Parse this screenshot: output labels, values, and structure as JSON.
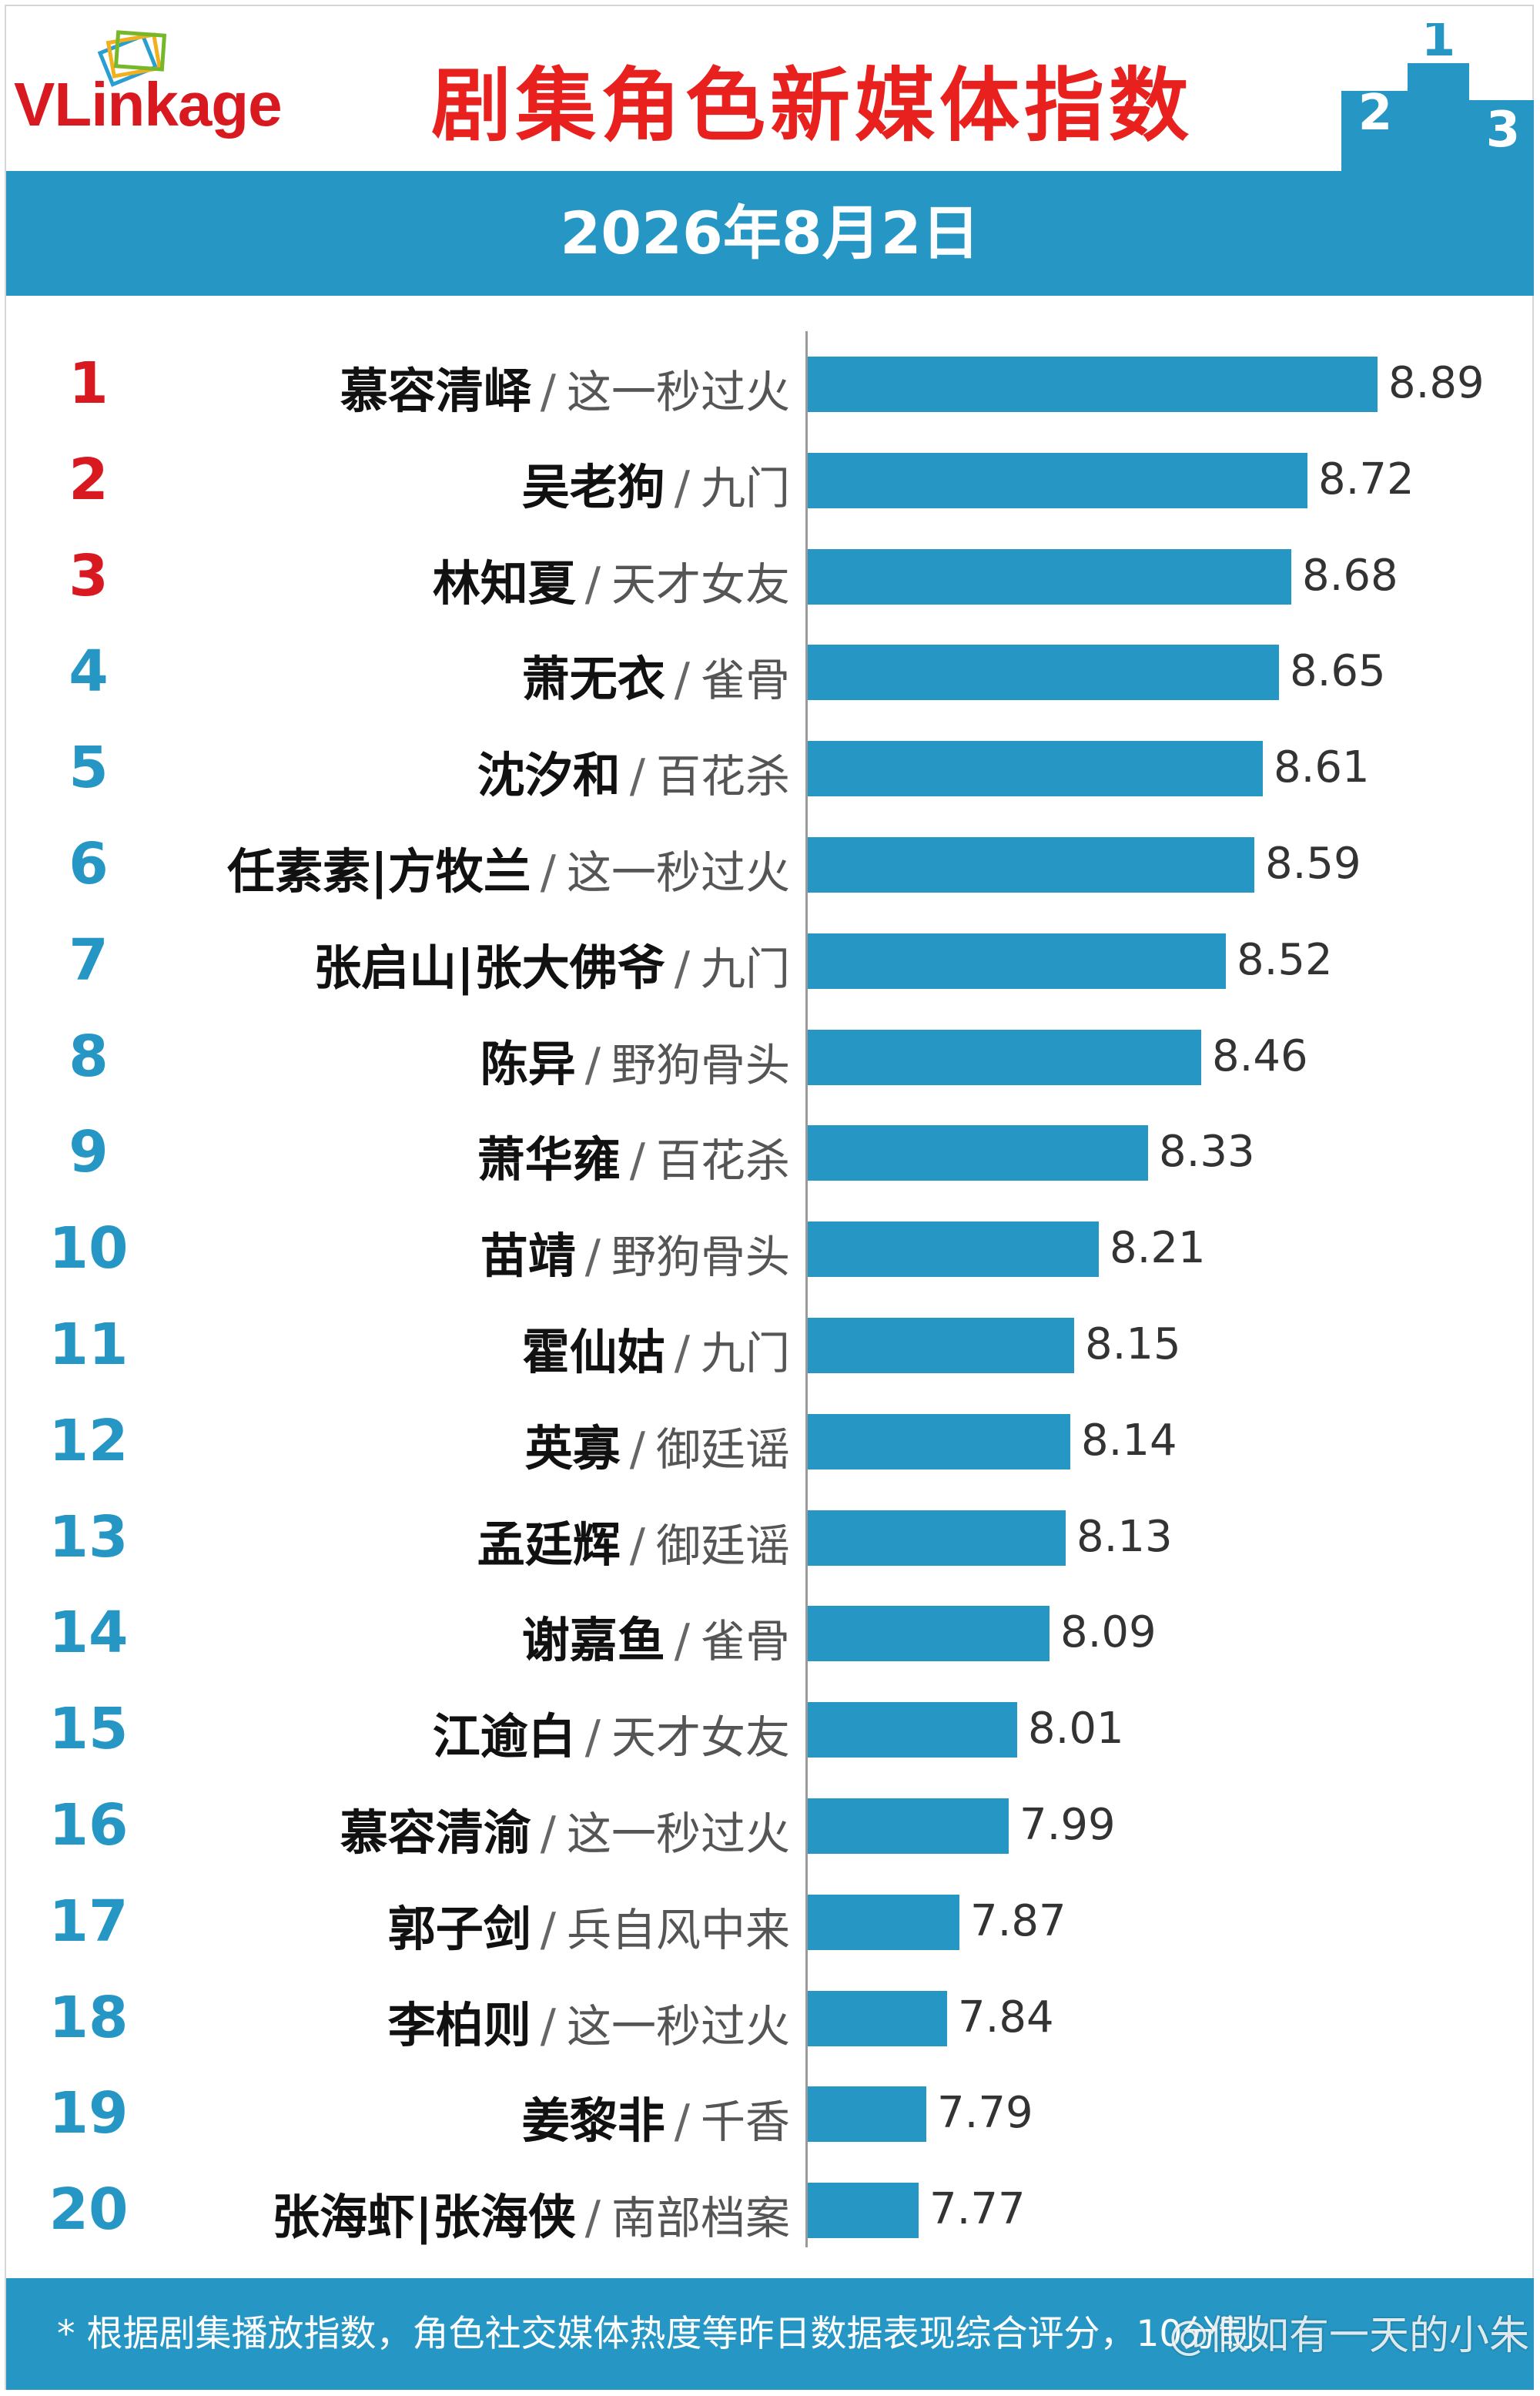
{
  "header": {
    "logo_text_vl": "VLink",
    "logo_text_ka": "age",
    "title": "剧集角色新媒体指数",
    "date": "2026年8月2日",
    "podium_numbers": [
      "2",
      "1",
      "3"
    ]
  },
  "footer": {
    "note": "* 根据剧集播放指数，角色社交媒体热度等昨日数据表现综合评分，10分制",
    "watermark": "@假如有一天的小朱"
  },
  "colors": {
    "bar": "#2697c4",
    "band": "#2697c4",
    "title": "#e8201e",
    "rank_top3": "#d81920",
    "rank_other": "#2697c4"
  },
  "chart_data": {
    "type": "bar",
    "orientation": "horizontal",
    "title": "剧集角色新媒体指数",
    "subtitle": "2026年8月2日",
    "xlabel": "",
    "ylabel": "",
    "grid": false,
    "value_labels": true,
    "xlim": [
      7.5,
      9.0
    ],
    "rows": [
      {
        "rank": "1",
        "name": "慕容清峄",
        "show": "这一秒过火",
        "value": 8.89
      },
      {
        "rank": "2",
        "name": "吴老狗",
        "show": "九门",
        "value": 8.72
      },
      {
        "rank": "3",
        "name": "林知夏",
        "show": "天才女友",
        "value": 8.68
      },
      {
        "rank": "4",
        "name": "萧无衣",
        "show": "雀骨",
        "value": 8.65
      },
      {
        "rank": "5",
        "name": "沈汐和",
        "show": "百花杀",
        "value": 8.61
      },
      {
        "rank": "6",
        "name": "任素素|方牧兰",
        "show": "这一秒过火",
        "value": 8.59
      },
      {
        "rank": "7",
        "name": "张启山|张大佛爷",
        "show": "九门",
        "value": 8.52
      },
      {
        "rank": "8",
        "name": "陈异",
        "show": "野狗骨头",
        "value": 8.46
      },
      {
        "rank": "9",
        "name": "萧华雍",
        "show": "百花杀",
        "value": 8.33
      },
      {
        "rank": "10",
        "name": "苗靖",
        "show": "野狗骨头",
        "value": 8.21
      },
      {
        "rank": "11",
        "name": "霍仙姑",
        "show": "九门",
        "value": 8.15
      },
      {
        "rank": "12",
        "name": "英寡",
        "show": "御廷谣",
        "value": 8.14
      },
      {
        "rank": "13",
        "name": "孟廷辉",
        "show": "御廷谣",
        "value": 8.13
      },
      {
        "rank": "14",
        "name": "谢嘉鱼",
        "show": "雀骨",
        "value": 8.09
      },
      {
        "rank": "15",
        "name": "江逾白",
        "show": "天才女友",
        "value": 8.01
      },
      {
        "rank": "16",
        "name": "慕容清渝",
        "show": "这一秒过火",
        "value": 7.99
      },
      {
        "rank": "17",
        "name": "郭子剑",
        "show": "兵自风中来",
        "value": 7.87
      },
      {
        "rank": "18",
        "name": "李柏则",
        "show": "这一秒过火",
        "value": 7.84
      },
      {
        "rank": "19",
        "name": "姜黎非",
        "show": "千香",
        "value": 7.79
      },
      {
        "rank": "20",
        "name": "张海虾|张海侠",
        "show": "南部档案",
        "value": 7.77
      }
    ]
  }
}
